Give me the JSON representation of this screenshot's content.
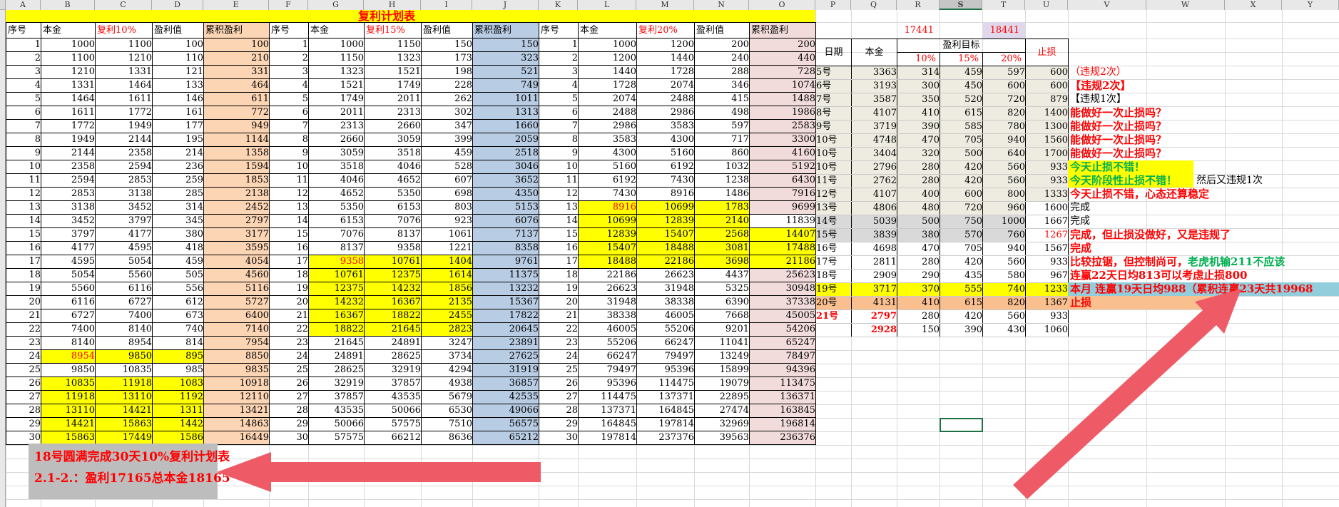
{
  "sheet": {
    "title": "复利计划表",
    "column_letters": [
      "A",
      "B",
      "C",
      "D",
      "E",
      "F",
      "G",
      "H",
      "I",
      "J",
      "K",
      "L",
      "M",
      "N",
      "O",
      "P",
      "Q",
      "R",
      "S",
      "T",
      "U",
      "V",
      "W",
      "X",
      "Y"
    ],
    "selected_column": "S",
    "top_values": {
      "r17441": "17441",
      "t18441": "18441"
    },
    "colors": {
      "accent_red": "#ff0000",
      "title_yellow": "#ffff00",
      "highlight_yellow": "#ffff00",
      "accum10": "#fcd5b4",
      "accum15": "#b8cce4",
      "accum20": "#f2dcdb",
      "daily_beige": "#eeece1",
      "daily_gray": "#d9d9d9",
      "daily_orange": "#fabf8f",
      "note_cyan": "#92cddc",
      "lavender": "#ded8ea",
      "green_text": "#00b050",
      "arrow_pink": "#ee5b66",
      "footer_gray": "#bdbdbd",
      "select_green": "#1e7145"
    },
    "compound_tables": [
      {
        "name": "compound-10pct",
        "headers": [
          "序号",
          "本金",
          "复利10%",
          "盈利值",
          "累积盈利"
        ],
        "yellow_rows": [
          24,
          26,
          27,
          28,
          29,
          30
        ],
        "accum_yellow_rows": [],
        "accum_white_rows": [],
        "red_cells": [
          [
            24,
            1
          ]
        ],
        "rows": [
          [
            1,
            1000,
            1100,
            100,
            100
          ],
          [
            2,
            1100,
            1210,
            110,
            210
          ],
          [
            3,
            1210,
            1331,
            121,
            331
          ],
          [
            4,
            1331,
            1464,
            133,
            464
          ],
          [
            5,
            1464,
            1611,
            146,
            611
          ],
          [
            6,
            1611,
            1772,
            161,
            772
          ],
          [
            7,
            1772,
            1949,
            177,
            949
          ],
          [
            8,
            1949,
            2144,
            195,
            1144
          ],
          [
            9,
            2144,
            2358,
            214,
            1358
          ],
          [
            10,
            2358,
            2594,
            236,
            1594
          ],
          [
            11,
            2594,
            2853,
            259,
            1853
          ],
          [
            12,
            2853,
            3138,
            285,
            2138
          ],
          [
            13,
            3138,
            3452,
            314,
            2452
          ],
          [
            14,
            3452,
            3797,
            345,
            2797
          ],
          [
            15,
            3797,
            4177,
            380,
            3177
          ],
          [
            16,
            4177,
            4595,
            418,
            3595
          ],
          [
            17,
            4595,
            5054,
            459,
            4054
          ],
          [
            18,
            5054,
            5560,
            505,
            4560
          ],
          [
            19,
            5560,
            6116,
            556,
            5116
          ],
          [
            20,
            6116,
            6727,
            612,
            5727
          ],
          [
            21,
            6727,
            7400,
            673,
            6400
          ],
          [
            22,
            7400,
            8140,
            740,
            7140
          ],
          [
            23,
            8140,
            8954,
            814,
            7954
          ],
          [
            24,
            8954,
            9850,
            895,
            8850
          ],
          [
            25,
            9850,
            10835,
            985,
            9835
          ],
          [
            26,
            10835,
            11918,
            1083,
            10918
          ],
          [
            27,
            11918,
            13110,
            1192,
            12110
          ],
          [
            28,
            13110,
            14421,
            1311,
            13421
          ],
          [
            29,
            14421,
            15863,
            1442,
            14863
          ],
          [
            30,
            15863,
            17449,
            1586,
            16449
          ]
        ]
      },
      {
        "name": "compound-15pct",
        "headers": [
          "序号",
          "本金",
          "复利15%",
          "盈利值",
          "累积盈利"
        ],
        "yellow_rows": [
          17,
          18,
          19,
          20,
          21,
          22
        ],
        "accum_yellow_rows": [],
        "accum_white_rows": [],
        "red_cells": [
          [
            17,
            1
          ]
        ],
        "rows": [
          [
            1,
            1000,
            1150,
            150,
            150
          ],
          [
            2,
            1150,
            1323,
            173,
            323
          ],
          [
            3,
            1323,
            1521,
            198,
            521
          ],
          [
            4,
            1521,
            1749,
            228,
            749
          ],
          [
            5,
            1749,
            2011,
            262,
            1011
          ],
          [
            6,
            2011,
            2313,
            302,
            1313
          ],
          [
            7,
            2313,
            2660,
            347,
            1660
          ],
          [
            8,
            2660,
            3059,
            399,
            2059
          ],
          [
            9,
            3059,
            3518,
            459,
            2518
          ],
          [
            10,
            3518,
            4046,
            528,
            3046
          ],
          [
            11,
            4046,
            4652,
            607,
            3652
          ],
          [
            12,
            4652,
            5350,
            698,
            4350
          ],
          [
            13,
            5350,
            6153,
            803,
            5153
          ],
          [
            14,
            6153,
            7076,
            923,
            6076
          ],
          [
            15,
            7076,
            8137,
            1061,
            7137
          ],
          [
            16,
            8137,
            9358,
            1221,
            8358
          ],
          [
            17,
            9358,
            10761,
            1404,
            9761
          ],
          [
            18,
            10761,
            12375,
            1614,
            11375
          ],
          [
            19,
            12375,
            14232,
            1856,
            13232
          ],
          [
            20,
            14232,
            16367,
            2135,
            15367
          ],
          [
            21,
            16367,
            18822,
            2455,
            17822
          ],
          [
            22,
            18822,
            21645,
            2823,
            20645
          ],
          [
            23,
            21645,
            24891,
            3247,
            23891
          ],
          [
            24,
            24891,
            28625,
            3734,
            27625
          ],
          [
            25,
            28625,
            32919,
            4294,
            31919
          ],
          [
            26,
            32919,
            37857,
            4938,
            36857
          ],
          [
            27,
            37857,
            43535,
            5679,
            42535
          ],
          [
            28,
            43535,
            50066,
            6530,
            49066
          ],
          [
            29,
            50066,
            57575,
            7510,
            56575
          ],
          [
            30,
            57575,
            66212,
            8636,
            65212
          ]
        ]
      },
      {
        "name": "compound-20pct",
        "headers": [
          "序号",
          "本金",
          "复利20%",
          "盈利值",
          "累积盈利"
        ],
        "yellow_rows": [
          13,
          14,
          15,
          16,
          17
        ],
        "accum_yellow_rows": [
          15,
          16,
          17
        ],
        "accum_white_rows": [
          14
        ],
        "red_cells": [
          [
            13,
            1
          ]
        ],
        "rows": [
          [
            1,
            1000,
            1200,
            200,
            200
          ],
          [
            2,
            1200,
            1440,
            240,
            440
          ],
          [
            3,
            1440,
            1728,
            288,
            728
          ],
          [
            4,
            1728,
            2074,
            346,
            1074
          ],
          [
            5,
            2074,
            2488,
            415,
            1488
          ],
          [
            6,
            2488,
            2986,
            498,
            1986
          ],
          [
            7,
            2986,
            3583,
            597,
            2583
          ],
          [
            8,
            3583,
            4300,
            717,
            3300
          ],
          [
            9,
            4300,
            5160,
            860,
            4160
          ],
          [
            10,
            5160,
            6192,
            1032,
            5192
          ],
          [
            11,
            6192,
            7430,
            1238,
            6430
          ],
          [
            12,
            7430,
            8916,
            1486,
            7916
          ],
          [
            13,
            8916,
            10699,
            1783,
            9699
          ],
          [
            14,
            10699,
            12839,
            2140,
            11839
          ],
          [
            15,
            12839,
            15407,
            2568,
            14407
          ],
          [
            16,
            15407,
            18488,
            3081,
            17488
          ],
          [
            17,
            18488,
            22186,
            3698,
            21186
          ],
          [
            18,
            22186,
            26623,
            4437,
            25623
          ],
          [
            19,
            26623,
            31948,
            5325,
            30948
          ],
          [
            20,
            31948,
            38338,
            6390,
            37338
          ],
          [
            21,
            38338,
            46005,
            7668,
            45005
          ],
          [
            22,
            46005,
            55206,
            9201,
            54206
          ],
          [
            23,
            55206,
            66247,
            11041,
            65247
          ],
          [
            24,
            66247,
            79497,
            13249,
            78497
          ],
          [
            25,
            79497,
            95396,
            15899,
            94396
          ],
          [
            26,
            95396,
            114475,
            19079,
            113475
          ],
          [
            27,
            114475,
            137371,
            22895,
            136371
          ],
          [
            28,
            137371,
            164845,
            27474,
            163845
          ],
          [
            29,
            164845,
            197814,
            32969,
            196814
          ],
          [
            30,
            197814,
            237376,
            39563,
            236376
          ]
        ]
      }
    ],
    "daily_table": {
      "header": {
        "date": "日期",
        "principal": "本金",
        "target": "盈利目标",
        "stop": "止损",
        "sub_rates": [
          "10%",
          "15%",
          "20%"
        ]
      },
      "rows": [
        {
          "date": "5号",
          "principal": "3363",
          "r10": "314",
          "r15": "459",
          "r20": "597",
          "stop": "600",
          "bg": "beige",
          "note": [
            {
              "t": "（违规2次）",
              "c": "red"
            }
          ]
        },
        {
          "date": "6号",
          "principal": "3193",
          "r10": "300",
          "r15": "450",
          "r20": "600",
          "stop": "600",
          "bg": "beige",
          "note": [
            {
              "t": "【违规2次】",
              "c": "redbold"
            }
          ]
        },
        {
          "date": "7号",
          "principal": "3587",
          "r10": "350",
          "r15": "520",
          "r20": "720",
          "stop": "879",
          "bg": "beige",
          "note": [
            {
              "t": "【违规1次】",
              "c": "black"
            }
          ]
        },
        {
          "date": "8号",
          "principal": "4107",
          "r10": "410",
          "r15": "615",
          "r20": "820",
          "stop": "1400",
          "bg": "beige",
          "note": [
            {
              "t": "能做好一次止损吗？",
              "c": "redbold"
            }
          ]
        },
        {
          "date": "9号",
          "principal": "3719",
          "r10": "390",
          "r15": "585",
          "r20": "780",
          "stop": "1300",
          "bg": "beige",
          "note": [
            {
              "t": "能做好一次止损吗？",
              "c": "redbold"
            }
          ]
        },
        {
          "date": "10号",
          "principal": "4748",
          "r10": "470",
          "r15": "705",
          "r20": "940",
          "stop": "1560",
          "bg": "beige",
          "note": [
            {
              "t": "能做好一次止损吗？",
              "c": "redbold"
            }
          ]
        },
        {
          "date": "10号",
          "principal": "3404",
          "r10": "320",
          "r15": "500",
          "r20": "640",
          "stop": "1700",
          "bg": "beige",
          "note": [
            {
              "t": "能做好一次止损吗？",
              "c": "redbold"
            }
          ]
        },
        {
          "date": "10号",
          "principal": "2796",
          "r10": "280",
          "r15": "420",
          "r20": "560",
          "stop": "933",
          "bg": "beige",
          "note_bg": "yellow",
          "note": [
            {
              "t": "今天止损不错！",
              "c": "greenbold"
            }
          ]
        },
        {
          "date": "11号",
          "principal": "2762",
          "r10": "280",
          "r15": "420",
          "r20": "560",
          "stop": "933",
          "bg": "beige",
          "note_bg": "yellow",
          "note": [
            {
              "t": "今天阶段性止损不错！",
              "c": "greenbold"
            }
          ],
          "note_extra": "然后又违规1次"
        },
        {
          "date": "12号",
          "principal": "4107",
          "r10": "400",
          "r15": "600",
          "r20": "800",
          "stop": "1333",
          "bg": "beige",
          "note": [
            {
              "t": "今天止损不错，心态还算稳定",
              "c": "redbold"
            }
          ]
        },
        {
          "date": "13号",
          "principal": "4806",
          "r10": "480",
          "r15": "720",
          "r20": "960",
          "stop": "1600",
          "bg": "beige",
          "stop_bg": "white",
          "note": [
            {
              "t": "完成",
              "c": "black"
            }
          ]
        },
        {
          "date": "14号",
          "principal": "5039",
          "r10": "500",
          "r15": "750",
          "r20": "1000",
          "stop": "1667",
          "bg": "gray",
          "stop_bg": "white",
          "note": [
            {
              "t": "完成",
              "c": "black"
            }
          ]
        },
        {
          "date": "15号",
          "principal": "3839",
          "r10": "380",
          "r15": "570",
          "r20": "760",
          "stop": "1267",
          "bg": "gray",
          "stop_bg": "white",
          "stop_red": true,
          "note": [
            {
              "t": "完成，但止损没做好，又是违规了",
              "c": "redbold"
            }
          ]
        },
        {
          "date": "16号",
          "principal": "4698",
          "r10": "470",
          "r15": "705",
          "r20": "940",
          "stop": "1567",
          "bg": "white",
          "note": [
            {
              "t": "完成",
              "c": "redbold"
            }
          ]
        },
        {
          "date": "17号",
          "principal": "2811",
          "r10": "280",
          "r15": "420",
          "r20": "560",
          "stop": "933",
          "bg": "white",
          "note": [
            {
              "t": "比较拉锯，但控制尚可，",
              "c": "redbold"
            },
            {
              "t": "老虎机输211不应该",
              "c": "greenbold"
            }
          ]
        },
        {
          "date": "18号",
          "principal": "2909",
          "r10": "290",
          "r15": "435",
          "r20": "580",
          "stop": "967",
          "bg": "white",
          "note": [
            {
              "t": "连赢22天日均813可以考虑止损800",
              "c": "redbold"
            }
          ]
        },
        {
          "date": "19号",
          "principal": "3717",
          "r10": "370",
          "r15": "555",
          "r20": "740",
          "stop": "1233",
          "bg": "yellow",
          "note_bg": "cyan",
          "note": [
            {
              "t": "本月 连赢19天日均988（累积连赢23天共19968",
              "c": "redbold"
            }
          ]
        },
        {
          "date": "20号",
          "principal": "4131",
          "r10": "410",
          "r15": "615",
          "r20": "820",
          "stop": "1367",
          "bg": "orange",
          "note_bg": "orange",
          "note": [
            {
              "t": "止损",
              "c": "redbold"
            }
          ]
        },
        {
          "date": "21号",
          "principal": "2797",
          "r10": "280",
          "r15": "420",
          "r20": "560",
          "stop": "933",
          "bg": "white",
          "date_red": true,
          "p_red": true,
          "note": []
        },
        {
          "date": "",
          "principal": "2928",
          "r10": "150",
          "r15": "390",
          "r20": "430",
          "stop": "1060",
          "bg": "white",
          "p_red": true,
          "note": []
        }
      ]
    },
    "footer_notes": {
      "line1": "18号圆满完成30天10%复利计划表",
      "line2": "2.1-2.：盈利17165总本金18165"
    }
  }
}
